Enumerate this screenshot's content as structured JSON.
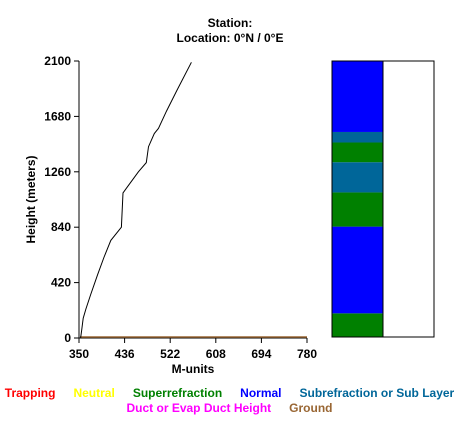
{
  "header": {
    "station_line": "Station:",
    "location_line": "Location:   0°N /   0°E"
  },
  "chart_data": {
    "type": "line",
    "xlabel": "M-units",
    "ylabel": "Height (meters)",
    "xlim": [
      350,
      780
    ],
    "ylim": [
      0,
      2100
    ],
    "x_ticks": [
      "350",
      "436",
      "522",
      "608",
      "694",
      "780"
    ],
    "y_ticks": [
      "0",
      "420",
      "840",
      "1260",
      "1680",
      "2100"
    ],
    "series": [
      {
        "color": "#000000",
        "points": [
          [
            353,
            0
          ],
          [
            355,
            60
          ],
          [
            358,
            150
          ],
          [
            363,
            220
          ],
          [
            372,
            330
          ],
          [
            385,
            480
          ],
          [
            397,
            610
          ],
          [
            410,
            740
          ],
          [
            430,
            840
          ],
          [
            433,
            1100
          ],
          [
            442,
            1150
          ],
          [
            462,
            1260
          ],
          [
            477,
            1330
          ],
          [
            481,
            1450
          ],
          [
            492,
            1550
          ],
          [
            500,
            1590
          ],
          [
            515,
            1720
          ],
          [
            535,
            1880
          ],
          [
            562,
            2090
          ]
        ]
      }
    ],
    "ground_line": {
      "color": "#996633",
      "y": 0
    },
    "condition_bar": {
      "ymax": 2100,
      "segments": [
        {
          "from": 0,
          "to": 180,
          "condition": "Superrefraction"
        },
        {
          "from": 180,
          "to": 840,
          "condition": "Normal"
        },
        {
          "from": 840,
          "to": 1100,
          "condition": "Superrefraction"
        },
        {
          "from": 1100,
          "to": 1330,
          "condition": "Subrefraction or Sub Layer"
        },
        {
          "from": 1330,
          "to": 1480,
          "condition": "Superrefraction"
        },
        {
          "from": 1480,
          "to": 1560,
          "condition": "Subrefraction or Sub Layer"
        },
        {
          "from": 1560,
          "to": 2100,
          "condition": "Normal"
        }
      ]
    },
    "legend": [
      {
        "label": "Trapping",
        "color": "#ff0000"
      },
      {
        "label": "Neutral",
        "color": "#ffff00"
      },
      {
        "label": "Superrefraction",
        "color": "#008000"
      },
      {
        "label": "Normal",
        "color": "#0000ff"
      },
      {
        "label": "Subrefraction or Sub Layer",
        "color": "#006699"
      },
      {
        "label": "Duct or Evap Duct Height",
        "color": "#ff00ff"
      },
      {
        "label": "Ground",
        "color": "#996633"
      }
    ]
  }
}
